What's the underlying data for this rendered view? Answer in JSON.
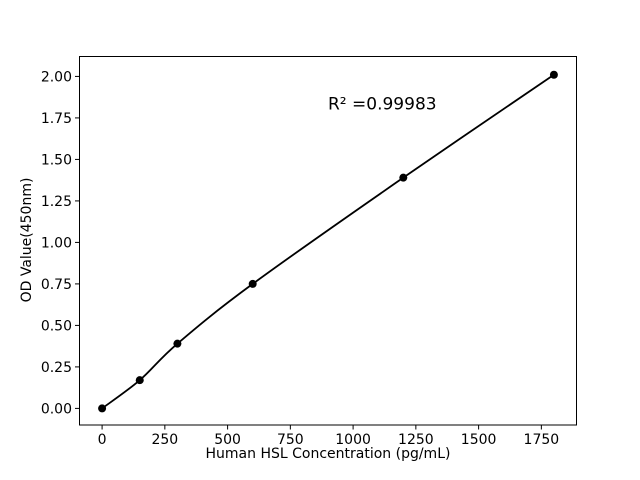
{
  "figure": {
    "background": "#ffffff"
  },
  "chart_data": {
    "type": "scatter",
    "title": "",
    "xlabel": "Human HSL Concentration (pg/mL)",
    "ylabel": "OD Value(450nm)",
    "x": [
      0,
      150,
      300,
      600,
      1200,
      1800
    ],
    "y": [
      0.0,
      0.17,
      0.39,
      0.75,
      1.39,
      2.01
    ],
    "fit_line": true,
    "annotation": {
      "text": "R² =0.99983",
      "x": 900,
      "y": 1.8
    },
    "xlim": [
      -90,
      1890
    ],
    "ylim": [
      -0.1,
      2.12
    ],
    "xticks": {
      "values": [
        0,
        250,
        500,
        750,
        1000,
        1250,
        1500,
        1750
      ],
      "labels": [
        "0",
        "250",
        "500",
        "750",
        "1000",
        "1250",
        "1500",
        "1750"
      ]
    },
    "yticks": {
      "values": [
        0,
        0.25,
        0.5,
        0.75,
        1.0,
        1.25,
        1.5,
        1.75,
        2.0
      ],
      "labels": [
        "0.00",
        "0.25",
        "0.50",
        "0.75",
        "1.00",
        "1.25",
        "1.50",
        "1.75",
        "2.00"
      ]
    },
    "grid": false,
    "legend": null,
    "colors": {
      "line": "#000000",
      "marker": "#000000",
      "text": "#000000",
      "background": "#ffffff"
    }
  }
}
